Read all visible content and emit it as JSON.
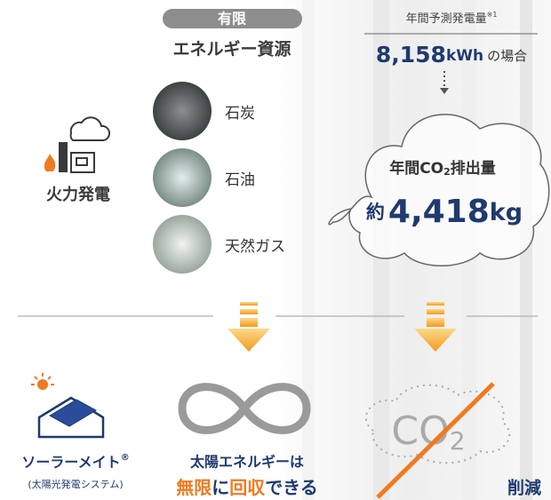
{
  "header": {
    "badge": "有限",
    "title": "エネルギー資源"
  },
  "forecast": {
    "label": "年間予測発電量",
    "note": "※1",
    "amount": "8,158",
    "unit": "kWh",
    "suffix": "の場合"
  },
  "resources": [
    {
      "label": "石炭"
    },
    {
      "label": "石油"
    },
    {
      "label": "天然ガス"
    }
  ],
  "source": {
    "label": "火力発電"
  },
  "emission": {
    "label_pre": "年間CO",
    "label_sub": "2",
    "label_post": "排出量",
    "prefix": "約",
    "amount": "4,418",
    "unit": "kg"
  },
  "solar": {
    "name": "ソーラーメイト",
    "mark": "®",
    "description": "(太陽光発電システム)"
  },
  "infinite": {
    "line1": "太陽エネルギーは",
    "line2": [
      {
        "text": "無限",
        "color": "#f07a1f"
      },
      {
        "text": "に",
        "color": "#1f3a6e"
      },
      {
        "text": "回収",
        "color": "#f07a1f"
      },
      {
        "text": "できる",
        "color": "#1f3a6e"
      }
    ]
  },
  "reduction": {
    "co": "CO",
    "sub": "2",
    "label": "削減"
  }
}
